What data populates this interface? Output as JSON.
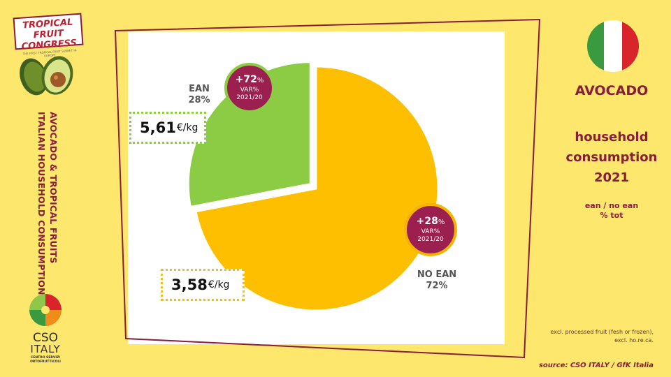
{
  "logos": {
    "tropical_fruit": {
      "line1": "TROPICAL FRUIT",
      "line2": "CONGRESS",
      "tagline": "THE FIRST TROPICAL FRUIT SUMMIT IN EUROPE"
    },
    "cso": {
      "word1": "CSO",
      "word2": "ITALY",
      "tagline": "CENTRO SERVIZI ORTOFRUTTICOLI"
    }
  },
  "side_title": {
    "line1": "AVOCADO & TROPICAL FRUITS",
    "line2": "ITALIAN HOUSEHOLD  CONSUMPTIONS"
  },
  "right_panel": {
    "title": "AVOCADO",
    "subtitle_lines": [
      "household",
      "consumption",
      "2021"
    ],
    "legend_lines": [
      "ean / no ean",
      "% tot"
    ],
    "note": "excl. processed fruit (fesh or frozen), excl. ho.re.ca.",
    "source": "source: CSO ITALY / GfK Italia"
  },
  "colors": {
    "background": "#fde76c",
    "ean": "#8ccc45",
    "no_ean": "#fdbf00",
    "bubble": "#9b2050",
    "brand": "#8a1c3c",
    "flag_green": "#3a9a3f",
    "flag_white": "#ffffff",
    "flag_red": "#d7252b"
  },
  "chart_data": {
    "type": "pie",
    "title": "",
    "slices": [
      {
        "name": "EAN",
        "label": "EAN",
        "value": 28,
        "value_label": "28%",
        "price": "5,61",
        "price_unit": "€/kg",
        "var": "+72",
        "var_unit": "%",
        "var_line": "VAR%",
        "var_period": "2021/20",
        "color": "#8ccc45"
      },
      {
        "name": "NO EAN",
        "label": "NO EAN",
        "value": 72,
        "value_label": "72%",
        "price": "3,58",
        "price_unit": "€/kg",
        "var": "+28",
        "var_unit": "%",
        "var_line": "VAR%",
        "var_period": "2021/20",
        "color": "#fdbf00"
      }
    ]
  }
}
